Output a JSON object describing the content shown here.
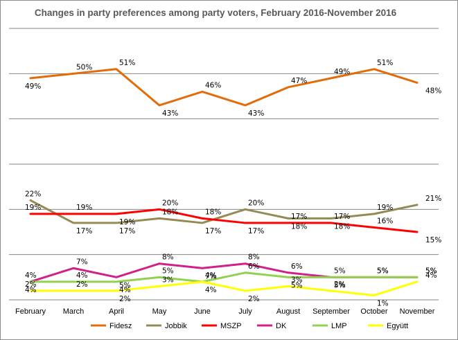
{
  "chart_data": {
    "type": "line",
    "title": "Changes in party preferences among party voters, February 2016-November 2016",
    "xlabel": "",
    "ylabel": "",
    "ylim": [
      0,
      60
    ],
    "grid": true,
    "legend_position": "bottom",
    "categories": [
      "February",
      "March",
      "April",
      "May",
      "June",
      "July",
      "August",
      "September",
      "October",
      "November"
    ],
    "series": [
      {
        "name": "Fidesz",
        "color": "#E36C0A",
        "values": [
          49,
          50,
          51,
          43,
          46,
          43,
          47,
          49,
          51,
          48
        ],
        "labels": [
          "49%",
          "50%",
          "51%",
          "43%",
          "46%",
          "43%",
          "47%",
          "49%",
          "51%",
          "48%"
        ]
      },
      {
        "name": "Jobbik",
        "color": "#948A54",
        "values": [
          22,
          17,
          17,
          18,
          17,
          20,
          18,
          18,
          19,
          21
        ],
        "labels": [
          "22%",
          "17%",
          "17%",
          "18%",
          "17%",
          "20%",
          "18%",
          "18%",
          "19%",
          "21%"
        ]
      },
      {
        "name": "MSZP",
        "color": "#FF0000",
        "values": [
          19,
          19,
          19,
          20,
          18,
          17,
          17,
          17,
          16,
          15
        ],
        "labels": [
          "19%",
          "19%",
          "19%",
          "20%",
          "18%",
          "17%",
          "17%",
          "17%",
          "16%",
          "15%"
        ]
      },
      {
        "name": "DK",
        "color": "#D0208A",
        "values": [
          4,
          7,
          5,
          8,
          7,
          8,
          6,
          5,
          5,
          5
        ],
        "labels": [
          "4%",
          "7%",
          "5%",
          "8%",
          "7%",
          "8%",
          "6%",
          "5%",
          "5%",
          "5%"
        ]
      },
      {
        "name": "LMP",
        "color": "#92D050",
        "values": [
          4,
          4,
          4,
          5,
          4,
          6,
          5,
          5,
          5,
          5
        ],
        "labels": [
          "4%",
          "4%",
          "4%",
          "5%",
          "4%",
          "6%",
          "5%",
          "5%",
          "5%",
          "5%"
        ]
      },
      {
        "name": "Együtt",
        "color": "#FFFF00",
        "values": [
          2,
          2,
          2,
          3,
          4,
          2,
          3,
          2,
          1,
          4
        ],
        "labels": [
          "2%",
          "2%",
          "2%",
          "3%",
          "4%",
          "2%",
          "3%",
          "2%",
          "1%",
          "4%"
        ]
      }
    ]
  }
}
